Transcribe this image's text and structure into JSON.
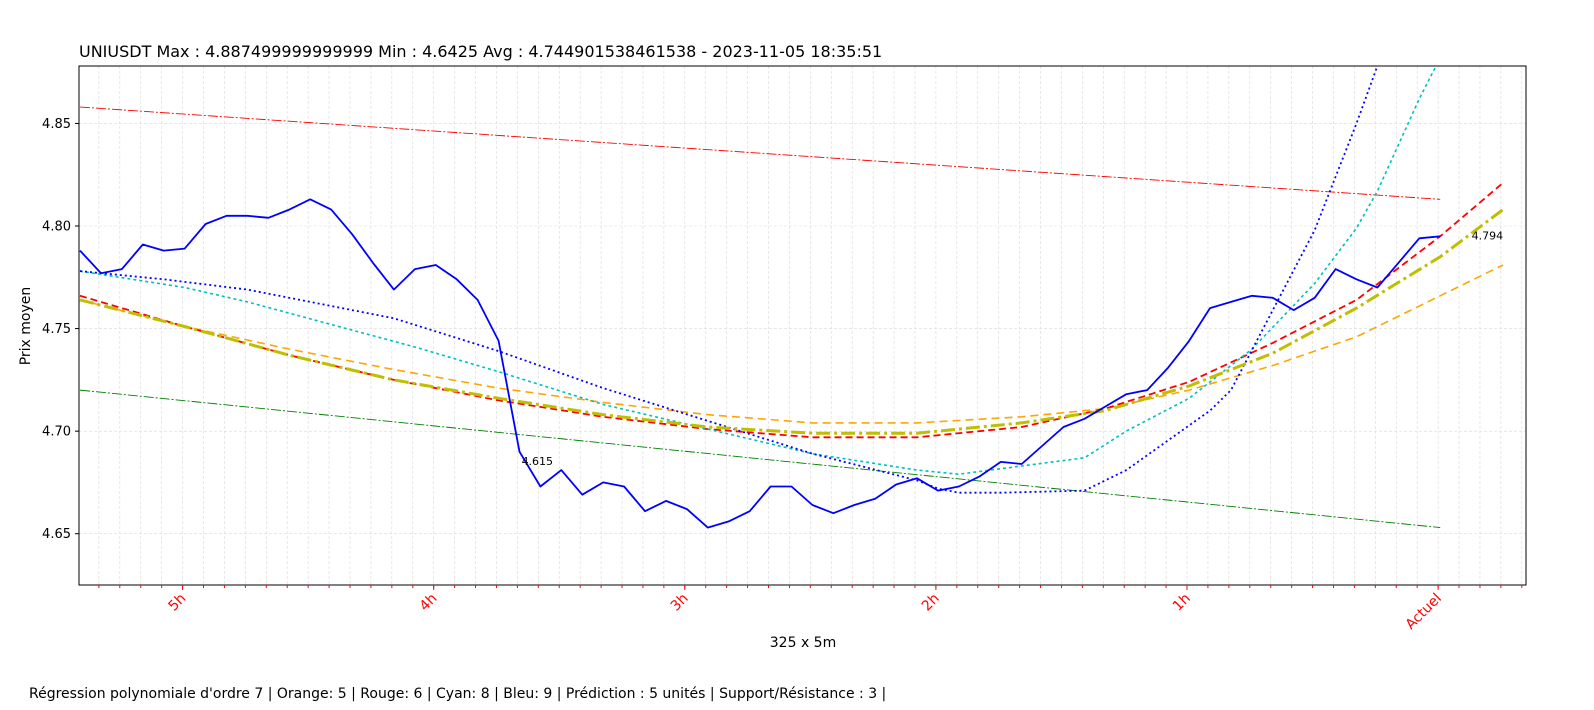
{
  "chart_data": {
    "type": "line",
    "title": "UNIUSDT Max : 4.887499999999999 Min : 4.6425 Avg : 4.744901538461538 - 2023-11-05 18:35:51",
    "xlabel": "325 x 5m",
    "ylabel": "Prix moyen",
    "footer": "Régression polynomiale d'ordre 7 | Orange: 5 | Rouge: 6 | Cyan: 8 | Bleu: 9 | Prédiction : 5 unités   | Support/Résistance : 3 |",
    "xlim": [
      -0.05,
      69.1
    ],
    "ylim": [
      4.625,
      4.878
    ],
    "grid": true,
    "y_ticks": [
      4.65,
      4.7,
      4.75,
      4.8,
      4.85
    ],
    "x_tick_labels": [
      {
        "x": 4.9,
        "label": "5h"
      },
      {
        "x": 16.9,
        "label": "4h"
      },
      {
        "x": 28.9,
        "label": "3h"
      },
      {
        "x": 40.9,
        "label": "2h"
      },
      {
        "x": 52.9,
        "label": "1h"
      },
      {
        "x": 64.9,
        "label": "Actuel"
      }
    ],
    "minor_tick_step": 1,
    "minor_tick_start": 0.9,
    "price": {
      "color": "#0000ff",
      "values": [
        4.788,
        4.777,
        4.779,
        4.791,
        4.788,
        4.789,
        4.801,
        4.805,
        4.805,
        4.804,
        4.808,
        4.813,
        4.808,
        4.796,
        4.782,
        4.769,
        4.779,
        4.781,
        4.774,
        4.764,
        4.744,
        4.69,
        4.673,
        4.681,
        4.669,
        4.675,
        4.673,
        4.661,
        4.666,
        4.662,
        4.653,
        4.656,
        4.661,
        4.673,
        4.673,
        4.664,
        4.66,
        4.664,
        4.667,
        4.674,
        4.677,
        4.671,
        4.673,
        4.678,
        4.685,
        4.684,
        4.693,
        4.702,
        4.706,
        4.712,
        4.718,
        4.72,
        4.731,
        4.744,
        4.76,
        4.763,
        4.766,
        4.765,
        4.759,
        4.765,
        4.779,
        4.774,
        4.77,
        4.782,
        4.794,
        4.795
      ]
    },
    "regressions": [
      {
        "color": "#ffa500",
        "dash": "8,5",
        "width": 1.6,
        "points": [
          [
            0,
            4.764
          ],
          [
            5,
            4.751
          ],
          [
            10,
            4.74
          ],
          [
            15,
            4.73
          ],
          [
            20,
            4.721
          ],
          [
            25,
            4.714
          ],
          [
            30,
            4.708
          ],
          [
            35,
            4.704
          ],
          [
            40,
            4.704
          ],
          [
            45,
            4.707
          ],
          [
            49,
            4.711
          ],
          [
            53,
            4.72
          ],
          [
            57,
            4.732
          ],
          [
            61,
            4.746
          ],
          [
            65,
            4.766
          ],
          [
            68,
            4.781
          ]
        ]
      },
      {
        "color": "#ff0000",
        "dash": "7,4",
        "width": 1.8,
        "points": [
          [
            0,
            4.766
          ],
          [
            5,
            4.751
          ],
          [
            10,
            4.737
          ],
          [
            15,
            4.725
          ],
          [
            20,
            4.715
          ],
          [
            25,
            4.707
          ],
          [
            30,
            4.701
          ],
          [
            35,
            4.697
          ],
          [
            40,
            4.697
          ],
          [
            45,
            4.702
          ],
          [
            49,
            4.711
          ],
          [
            53,
            4.724
          ],
          [
            57,
            4.743
          ],
          [
            61,
            4.764
          ],
          [
            65,
            4.795
          ],
          [
            68,
            4.821
          ]
        ]
      },
      {
        "color": "#00bfbf",
        "dash": "3,3",
        "width": 1.6,
        "points": [
          [
            0,
            4.778
          ],
          [
            5,
            4.77
          ],
          [
            8,
            4.763
          ],
          [
            12,
            4.752
          ],
          [
            16,
            4.741
          ],
          [
            20,
            4.729
          ],
          [
            25,
            4.713
          ],
          [
            30,
            4.701
          ],
          [
            35,
            4.689
          ],
          [
            40,
            4.681
          ],
          [
            42,
            4.679
          ],
          [
            45,
            4.683
          ],
          [
            48,
            4.687
          ],
          [
            50,
            4.7
          ],
          [
            53,
            4.716
          ],
          [
            56,
            4.74
          ],
          [
            59,
            4.772
          ],
          [
            61,
            4.799
          ],
          [
            62,
            4.817
          ],
          [
            64,
            4.862
          ],
          [
            64.8,
            4.878
          ]
        ]
      },
      {
        "color": "#0000ff",
        "dash": "2,3",
        "width": 1.8,
        "points": [
          [
            0,
            4.778
          ],
          [
            4,
            4.774
          ],
          [
            8,
            4.769
          ],
          [
            12,
            4.761
          ],
          [
            15,
            4.755
          ],
          [
            20,
            4.739
          ],
          [
            25,
            4.721
          ],
          [
            30,
            4.705
          ],
          [
            35,
            4.689
          ],
          [
            40,
            4.676
          ],
          [
            41,
            4.672
          ],
          [
            42,
            4.67
          ],
          [
            44,
            4.67
          ],
          [
            48,
            4.671
          ],
          [
            50,
            4.681
          ],
          [
            54,
            4.71
          ],
          [
            55,
            4.72
          ],
          [
            57,
            4.759
          ],
          [
            59,
            4.798
          ],
          [
            61,
            4.85
          ],
          [
            62,
            4.878
          ]
        ]
      },
      {
        "color": "#bfbf00",
        "dash": "14,4,3,4",
        "width": 3,
        "points": [
          [
            0,
            4.764
          ],
          [
            5,
            4.751
          ],
          [
            10,
            4.737
          ],
          [
            15,
            4.725
          ],
          [
            20,
            4.716
          ],
          [
            25,
            4.708
          ],
          [
            30,
            4.702
          ],
          [
            35,
            4.699
          ],
          [
            40,
            4.699
          ],
          [
            45,
            4.704
          ],
          [
            49,
            4.71
          ],
          [
            53,
            4.722
          ],
          [
            57,
            4.738
          ],
          [
            61,
            4.76
          ],
          [
            65,
            4.785
          ],
          [
            68,
            4.808
          ]
        ]
      }
    ],
    "resistance": {
      "color": "#ff0000",
      "dash": "10,2,2,2",
      "width": 0.9,
      "from": [
        0,
        4.858
      ],
      "to": [
        65,
        4.813
      ]
    },
    "support": {
      "color": "#008000",
      "dash": "10,2,2,2",
      "width": 0.9,
      "from": [
        0,
        4.72
      ],
      "to": [
        65,
        4.653
      ]
    },
    "annotations": [
      {
        "x": 21.1,
        "y": 4.6835,
        "text": "4.615"
      },
      {
        "x": 66.5,
        "y": 4.7935,
        "text": "4.794"
      }
    ]
  }
}
